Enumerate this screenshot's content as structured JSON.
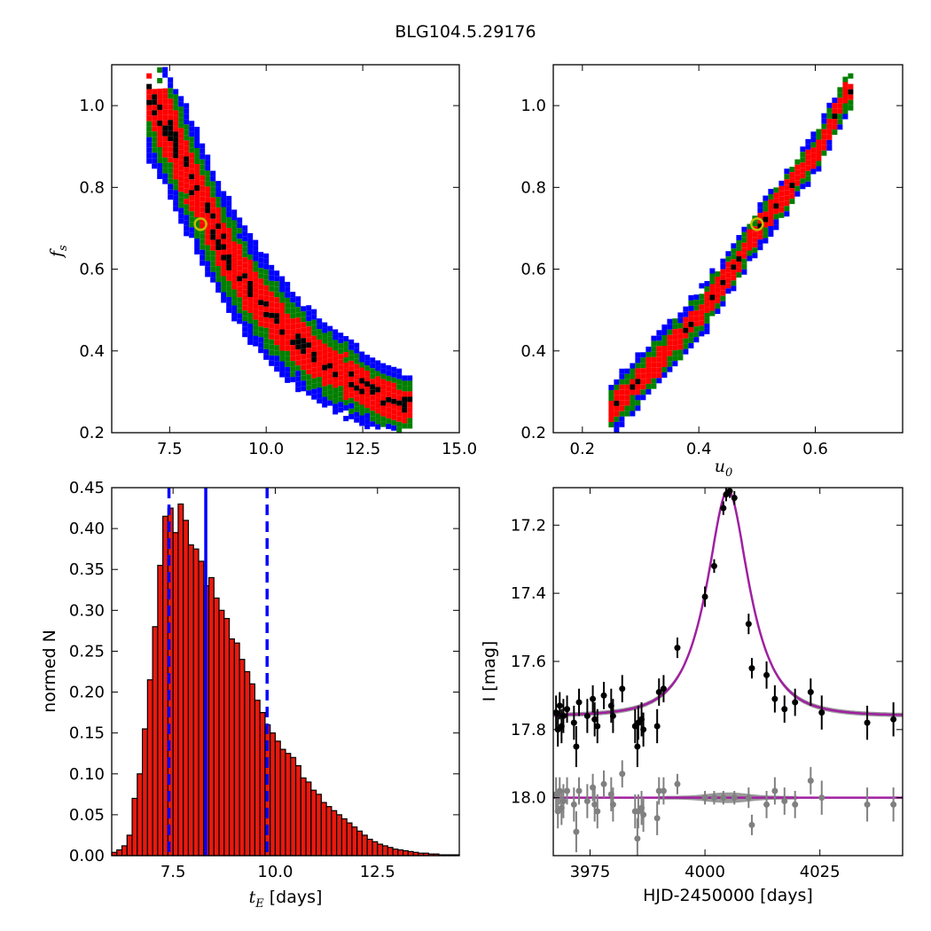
{
  "title": "BLG104.5.29176",
  "chart_data": [
    {
      "type": "heatmap",
      "panel": "top-left",
      "xlabel": "",
      "ylabel": "f",
      "ylabel_sub": "s",
      "xlim": [
        6.0,
        15.0
      ],
      "ylim": [
        0.2,
        1.1
      ],
      "xticks": [
        "7.5",
        "10.0",
        "12.5",
        "15.0"
      ],
      "yticks": [
        "0.2",
        "0.4",
        "0.6",
        "0.8",
        "1.0"
      ],
      "best_fit": [
        8.3,
        0.71
      ],
      "band_center": [
        [
          6.9,
          1.04
        ],
        [
          7.5,
          0.93
        ],
        [
          8.0,
          0.82
        ],
        [
          8.5,
          0.72
        ],
        [
          9.0,
          0.63
        ],
        [
          9.5,
          0.56
        ],
        [
          10.0,
          0.5
        ],
        [
          10.5,
          0.45
        ],
        [
          11.0,
          0.41
        ],
        [
          11.5,
          0.375
        ],
        [
          12.0,
          0.345
        ],
        [
          12.5,
          0.315
        ],
        [
          13.0,
          0.29
        ],
        [
          13.5,
          0.275
        ]
      ],
      "levels": [
        "blue",
        "green",
        "red",
        "black"
      ],
      "colors": {
        "blue": "#0000ff",
        "green": "#007f00",
        "red": "#ff0000",
        "black": "#000000",
        "marker": "#bfbf00"
      }
    },
    {
      "type": "heatmap",
      "panel": "top-right",
      "xlabel": "u",
      "xlabel_sub": "0",
      "ylabel": "",
      "xlim": [
        0.15,
        0.75
      ],
      "ylim": [
        0.2,
        1.1
      ],
      "xticks": [
        "0.2",
        "0.4",
        "0.6"
      ],
      "yticks": [
        "0.2",
        "0.4",
        "0.6",
        "0.8",
        "1.0"
      ],
      "best_fit": [
        0.5,
        0.71
      ],
      "band_center": [
        [
          0.245,
          0.265
        ],
        [
          0.3,
          0.345
        ],
        [
          0.35,
          0.42
        ],
        [
          0.4,
          0.5
        ],
        [
          0.45,
          0.6
        ],
        [
          0.5,
          0.71
        ],
        [
          0.55,
          0.8
        ],
        [
          0.6,
          0.9
        ],
        [
          0.65,
          1.04
        ]
      ],
      "levels": [
        "blue",
        "green",
        "red",
        "black"
      ],
      "colors": {
        "blue": "#0000ff",
        "green": "#007f00",
        "red": "#ff0000",
        "black": "#000000",
        "marker": "#bfbf00"
      }
    },
    {
      "type": "bar",
      "panel": "bottom-left",
      "xlabel": "t",
      "xlabel_sub": "E",
      "xlabel_unit": " [days]",
      "ylabel": "normed N",
      "xlim": [
        6.0,
        14.5
      ],
      "ylim": [
        0.0,
        0.45
      ],
      "xticks": [
        "7.5",
        "10.0",
        "12.5"
      ],
      "yticks": [
        "0.00",
        "0.05",
        "0.10",
        "0.15",
        "0.20",
        "0.25",
        "0.30",
        "0.35",
        "0.40",
        "0.45"
      ],
      "bin_start": 6.0,
      "bin_width": 0.125,
      "values": [
        0.004,
        0.007,
        0.012,
        0.025,
        0.07,
        0.1,
        0.155,
        0.215,
        0.28,
        0.355,
        0.415,
        0.425,
        0.395,
        0.43,
        0.41,
        0.38,
        0.375,
        0.36,
        0.33,
        0.34,
        0.315,
        0.3,
        0.29,
        0.265,
        0.26,
        0.24,
        0.225,
        0.21,
        0.19,
        0.175,
        0.16,
        0.15,
        0.14,
        0.13,
        0.125,
        0.12,
        0.11,
        0.095,
        0.09,
        0.08,
        0.075,
        0.065,
        0.06,
        0.055,
        0.05,
        0.045,
        0.04,
        0.035,
        0.03,
        0.025,
        0.02,
        0.017,
        0.014,
        0.012,
        0.01,
        0.008,
        0.007,
        0.006,
        0.005,
        0.004,
        0.003,
        0.003,
        0.002,
        0.002,
        0.001,
        0.001,
        0.001,
        0.001
      ],
      "median": 8.3,
      "interval": [
        7.4,
        9.8
      ],
      "colors": {
        "bar": "#e8190e",
        "edge": "#000000",
        "line": "#0000ff"
      }
    },
    {
      "type": "scatter",
      "panel": "bottom-right",
      "xlabel": "HJD-2450000 [days]",
      "ylabel": "I [mag]",
      "xlim": [
        3967,
        4043
      ],
      "ylim": [
        18.17,
        17.09
      ],
      "xticks": [
        "3975",
        "4000",
        "4025"
      ],
      "yticks": [
        "17.2",
        "17.4",
        "17.6",
        "17.8",
        "18.0"
      ],
      "model": {
        "t0": 4005.0,
        "u0": 0.5,
        "tE": 8.3,
        "fs": 0.71,
        "baseline": 17.76
      },
      "residual_offset": 18.0,
      "series": [
        {
          "name": "data",
          "points": [
            [
              3967.6,
              17.75,
              0.05
            ],
            [
              3968.0,
              17.8,
              0.05
            ],
            [
              3968.4,
              17.73,
              0.04
            ],
            [
              3968.8,
              17.79,
              0.05
            ],
            [
              3969.2,
              17.76,
              0.05
            ],
            [
              3970.0,
              17.74,
              0.04
            ],
            [
              3971.5,
              17.78,
              0.05
            ],
            [
              3972.0,
              17.85,
              0.06
            ],
            [
              3972.6,
              17.72,
              0.04
            ],
            [
              3974.4,
              17.76,
              0.05
            ],
            [
              3975.6,
              17.71,
              0.04
            ],
            [
              3976.0,
              17.77,
              0.05
            ],
            [
              3976.6,
              17.79,
              0.05
            ],
            [
              3978.0,
              17.7,
              0.04
            ],
            [
              3979.6,
              17.73,
              0.05
            ],
            [
              3980.0,
              17.76,
              0.05
            ],
            [
              3982.0,
              17.68,
              0.04
            ],
            [
              3984.8,
              17.79,
              0.05
            ],
            [
              3985.3,
              17.85,
              0.06
            ],
            [
              3985.5,
              17.78,
              0.05
            ],
            [
              3986.2,
              17.77,
              0.05
            ],
            [
              3986.6,
              17.8,
              0.05
            ],
            [
              3989.6,
              17.79,
              0.05
            ],
            [
              3990.0,
              17.69,
              0.04
            ],
            [
              3991.0,
              17.68,
              0.04
            ],
            [
              3994.0,
              17.56,
              0.03
            ],
            [
              4000.0,
              17.41,
              0.03
            ],
            [
              4002.0,
              17.32,
              0.02
            ],
            [
              4004.0,
              17.15,
              0.02
            ],
            [
              4004.6,
              17.11,
              0.02
            ],
            [
              4005.4,
              17.1,
              0.02
            ],
            [
              4006.4,
              17.12,
              0.02
            ],
            [
              4009.5,
              17.49,
              0.03
            ],
            [
              4010.2,
              17.62,
              0.03
            ],
            [
              4013.4,
              17.64,
              0.04
            ],
            [
              4015.2,
              17.71,
              0.04
            ],
            [
              4017.3,
              17.74,
              0.04
            ],
            [
              4019.6,
              17.72,
              0.04
            ],
            [
              4023.0,
              17.69,
              0.04
            ],
            [
              4025.4,
              17.75,
              0.05
            ],
            [
              4035.3,
              17.78,
              0.05
            ],
            [
              4041.0,
              17.77,
              0.05
            ]
          ],
          "color": "#000000"
        },
        {
          "name": "residuals",
          "points": [
            [
              3967.6,
              17.99,
              0.05
            ],
            [
              3968.0,
              18.04,
              0.05
            ],
            [
              3968.4,
              17.98,
              0.04
            ],
            [
              3968.8,
              18.03,
              0.05
            ],
            [
              3969.2,
              18.01,
              0.05
            ],
            [
              3970.0,
              17.98,
              0.04
            ],
            [
              3971.5,
              18.02,
              0.05
            ],
            [
              3972.0,
              18.1,
              0.06
            ],
            [
              3972.6,
              17.98,
              0.04
            ],
            [
              3974.4,
              18.01,
              0.05
            ],
            [
              3975.6,
              17.97,
              0.04
            ],
            [
              3976.0,
              18.02,
              0.05
            ],
            [
              3976.6,
              18.04,
              0.05
            ],
            [
              3978.0,
              17.96,
              0.04
            ],
            [
              3979.6,
              17.99,
              0.05
            ],
            [
              3980.0,
              18.02,
              0.05
            ],
            [
              3982.0,
              17.93,
              0.04
            ],
            [
              3984.8,
              18.04,
              0.05
            ],
            [
              3985.3,
              18.12,
              0.06
            ],
            [
              3985.5,
              18.04,
              0.05
            ],
            [
              3986.2,
              18.03,
              0.05
            ],
            [
              3986.6,
              18.05,
              0.05
            ],
            [
              3989.6,
              18.06,
              0.05
            ],
            [
              3990.0,
              17.98,
              0.04
            ],
            [
              3991.0,
              17.98,
              0.04
            ],
            [
              3994.0,
              17.96,
              0.03
            ],
            [
              4000.0,
              18.0,
              0.02
            ],
            [
              4002.0,
              18.0,
              0.02
            ],
            [
              4004.0,
              18.0,
              0.02
            ],
            [
              4006.4,
              18.0,
              0.02
            ],
            [
              4009.5,
              18.0,
              0.03
            ],
            [
              4010.2,
              18.08,
              0.03
            ],
            [
              4013.4,
              18.02,
              0.04
            ],
            [
              4015.2,
              17.98,
              0.04
            ],
            [
              4017.3,
              18.01,
              0.04
            ],
            [
              4019.6,
              18.02,
              0.04
            ],
            [
              4023.0,
              17.95,
              0.04
            ],
            [
              4025.4,
              18.0,
              0.05
            ],
            [
              4035.3,
              18.02,
              0.05
            ],
            [
              4041.0,
              18.02,
              0.05
            ]
          ],
          "color": "#808080"
        }
      ],
      "colors": {
        "model": "#a020a0",
        "band": "#808080"
      }
    }
  ]
}
